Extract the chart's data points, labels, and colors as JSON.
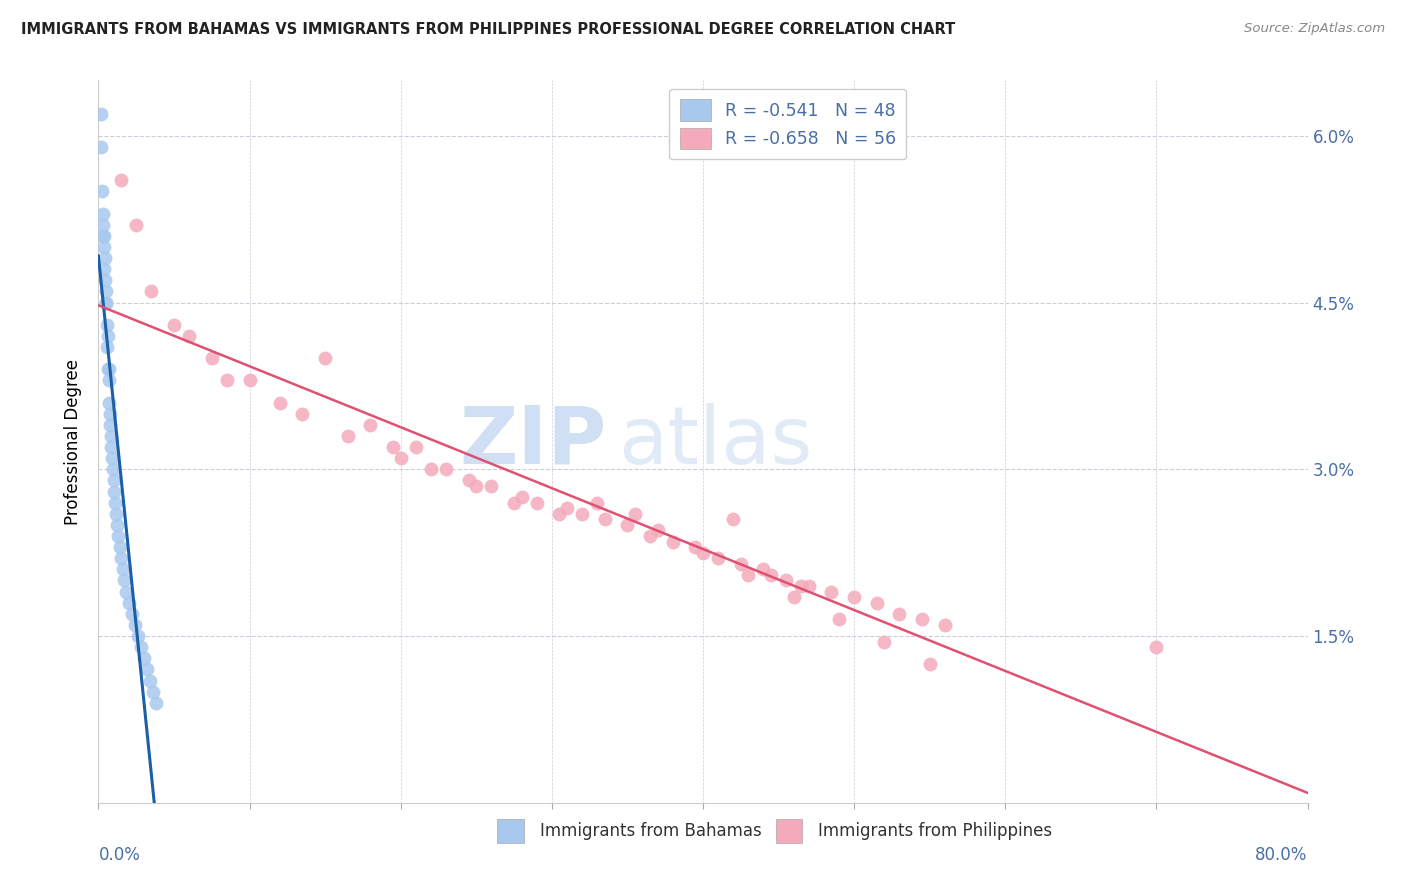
{
  "title": "IMMIGRANTS FROM BAHAMAS VS IMMIGRANTS FROM PHILIPPINES PROFESSIONAL DEGREE CORRELATION CHART",
  "source": "Source: ZipAtlas.com",
  "ylabel": "Professional Degree",
  "series1_name": "Immigrants from Bahamas",
  "series2_name": "Immigrants from Philippines",
  "series1_color": "#a8c8ee",
  "series2_color": "#f4aabb",
  "series1_line_color": "#1a5fa8",
  "series2_line_color": "#e05070",
  "series1_r": "-0.541",
  "series1_n": "48",
  "series2_r": "-0.658",
  "series2_n": "56",
  "watermark_zip": "ZIP",
  "watermark_atlas": "atlas",
  "label_color": "#4a6fa5",
  "title_color": "#222222",
  "bahamas_x": [
    0.15,
    0.18,
    0.22,
    0.28,
    0.3,
    0.32,
    0.35,
    0.38,
    0.4,
    0.42,
    0.45,
    0.48,
    0.5,
    0.52,
    0.55,
    0.6,
    0.62,
    0.65,
    0.68,
    0.7,
    0.72,
    0.75,
    0.78,
    0.8,
    0.85,
    0.9,
    0.95,
    1.0,
    1.05,
    1.1,
    1.15,
    1.2,
    1.3,
    1.4,
    1.5,
    1.6,
    1.7,
    1.8,
    2.0,
    2.2,
    2.4,
    2.6,
    2.8,
    3.0,
    3.2,
    3.4,
    3.6,
    3.8
  ],
  "bahamas_y": [
    6.2,
    5.9,
    5.5,
    5.2,
    5.1,
    5.3,
    5.0,
    4.8,
    5.1,
    4.9,
    4.7,
    4.5,
    4.5,
    4.6,
    4.3,
    4.1,
    4.2,
    3.9,
    3.8,
    3.9,
    3.6,
    3.5,
    3.4,
    3.2,
    3.3,
    3.1,
    3.0,
    2.9,
    2.8,
    2.7,
    2.6,
    2.5,
    2.4,
    2.3,
    2.2,
    2.1,
    2.0,
    1.9,
    1.8,
    1.7,
    1.6,
    1.5,
    1.4,
    1.3,
    1.2,
    1.1,
    1.0,
    0.9
  ],
  "philippines_x": [
    1.5,
    2.5,
    3.5,
    5.0,
    6.0,
    7.5,
    8.5,
    10.0,
    12.0,
    13.5,
    15.0,
    16.5,
    18.0,
    19.5,
    21.0,
    23.0,
    24.5,
    26.0,
    27.5,
    29.0,
    30.5,
    32.0,
    33.5,
    35.0,
    36.5,
    38.0,
    39.5,
    41.0,
    42.5,
    44.0,
    45.5,
    47.0,
    48.5,
    50.0,
    51.5,
    53.0,
    54.5,
    56.0,
    42.0,
    44.5,
    46.5,
    33.0,
    35.5,
    20.0,
    22.0,
    25.0,
    28.0,
    31.0,
    37.0,
    40.0,
    43.0,
    46.0,
    49.0,
    52.0,
    55.0,
    70.0
  ],
  "philippines_y": [
    5.6,
    5.2,
    4.6,
    4.3,
    4.2,
    4.0,
    3.8,
    3.8,
    3.6,
    3.5,
    4.0,
    3.3,
    3.4,
    3.2,
    3.2,
    3.0,
    2.9,
    2.85,
    2.7,
    2.7,
    2.6,
    2.6,
    2.55,
    2.5,
    2.4,
    2.35,
    2.3,
    2.2,
    2.15,
    2.1,
    2.0,
    1.95,
    1.9,
    1.85,
    1.8,
    1.7,
    1.65,
    1.6,
    2.55,
    2.05,
    1.95,
    2.7,
    2.6,
    3.1,
    3.0,
    2.85,
    2.75,
    2.65,
    2.45,
    2.25,
    2.05,
    1.85,
    1.65,
    1.45,
    1.25,
    1.4
  ]
}
